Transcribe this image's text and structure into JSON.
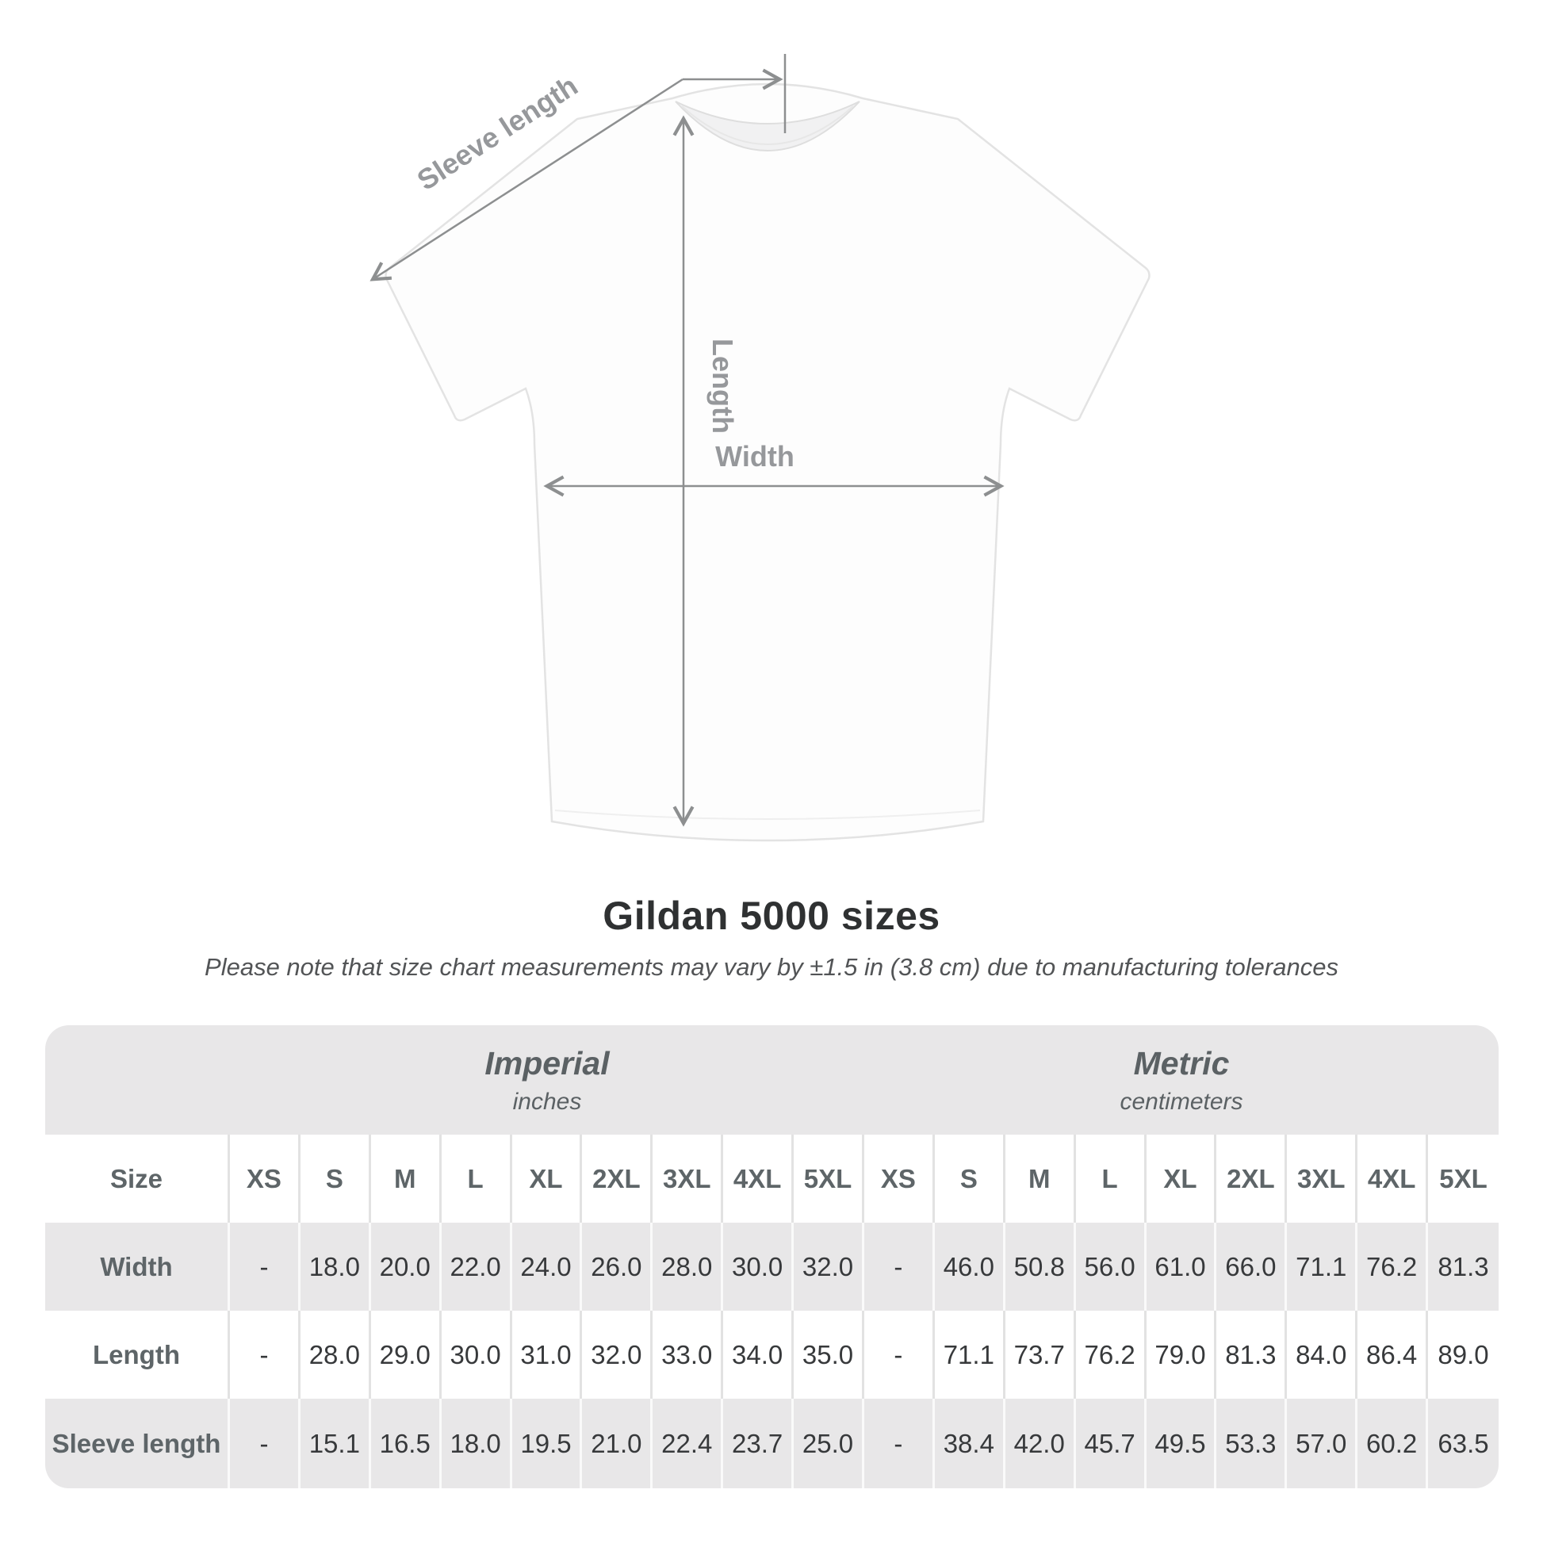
{
  "diagram": {
    "labels": {
      "sleeve_length": "Sleeve length",
      "length": "Length",
      "width": "Width"
    }
  },
  "heading": {
    "title": "Gildan 5000 sizes",
    "note": "Please note that size chart measurements may vary by ±1.5 in (3.8 cm) due to manufacturing tolerances"
  },
  "table": {
    "size_header": "Size",
    "groups": [
      {
        "name": "Imperial",
        "unit": "inches"
      },
      {
        "name": "Metric",
        "unit": "centimeters"
      }
    ],
    "columns": [
      "XS",
      "S",
      "M",
      "L",
      "XL",
      "2XL",
      "3XL",
      "4XL",
      "5XL",
      "XS",
      "S",
      "M",
      "L",
      "XL",
      "2XL",
      "3XL",
      "4XL",
      "5XL"
    ],
    "rows": [
      {
        "label": "Width",
        "values": [
          "-",
          "18.0",
          "20.0",
          "22.0",
          "24.0",
          "26.0",
          "28.0",
          "30.0",
          "32.0",
          "-",
          "46.0",
          "50.8",
          "56.0",
          "61.0",
          "66.0",
          "71.1",
          "76.2",
          "81.3"
        ]
      },
      {
        "label": "Length",
        "values": [
          "-",
          "28.0",
          "29.0",
          "30.0",
          "31.0",
          "32.0",
          "33.0",
          "34.0",
          "35.0",
          "-",
          "71.1",
          "73.7",
          "76.2",
          "79.0",
          "81.3",
          "84.0",
          "86.4",
          "89.0"
        ]
      },
      {
        "label": "Sleeve length",
        "values": [
          "-",
          "15.1",
          "16.5",
          "18.0",
          "19.5",
          "21.0",
          "22.4",
          "23.7",
          "25.0",
          "-",
          "38.4",
          "42.0",
          "45.7",
          "49.5",
          "53.3",
          "57.0",
          "60.2",
          "63.5"
        ]
      }
    ]
  },
  "chart_data": {
    "type": "table",
    "title": "Gildan 5000 sizes",
    "note": "Please note that size chart measurements may vary by ±1.5 in (3.8 cm) due to manufacturing tolerances",
    "column_groups": [
      {
        "name": "Imperial",
        "unit": "inches",
        "columns": [
          "XS",
          "S",
          "M",
          "L",
          "XL",
          "2XL",
          "3XL",
          "4XL",
          "5XL"
        ]
      },
      {
        "name": "Metric",
        "unit": "centimeters",
        "columns": [
          "XS",
          "S",
          "M",
          "L",
          "XL",
          "2XL",
          "3XL",
          "4XL",
          "5XL"
        ]
      }
    ],
    "rows": [
      {
        "measurement": "Width",
        "imperial_in": [
          null,
          18.0,
          20.0,
          22.0,
          24.0,
          26.0,
          28.0,
          30.0,
          32.0
        ],
        "metric_cm": [
          null,
          46.0,
          50.8,
          56.0,
          61.0,
          66.0,
          71.1,
          76.2,
          81.3
        ]
      },
      {
        "measurement": "Length",
        "imperial_in": [
          null,
          28.0,
          29.0,
          30.0,
          31.0,
          32.0,
          33.0,
          34.0,
          35.0
        ],
        "metric_cm": [
          null,
          71.1,
          73.7,
          76.2,
          79.0,
          81.3,
          84.0,
          86.4,
          89.0
        ]
      },
      {
        "measurement": "Sleeve length",
        "imperial_in": [
          null,
          15.1,
          16.5,
          18.0,
          19.5,
          21.0,
          22.4,
          23.7,
          25.0
        ],
        "metric_cm": [
          null,
          38.4,
          42.0,
          45.7,
          49.5,
          53.3,
          57.0,
          60.2,
          63.5
        ]
      }
    ]
  },
  "colors": {
    "table_band_gray": "#e8e7e8",
    "header_text": "#5e6568",
    "value_text": "#37393b",
    "diagram_label_gray": "#96989b",
    "arrow_gray": "#8d8f90"
  }
}
